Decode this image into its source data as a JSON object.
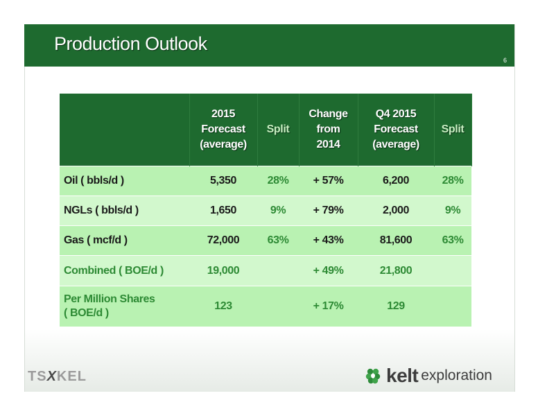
{
  "slide": {
    "title": "Production Outlook",
    "page_number": "6"
  },
  "table": {
    "headers": [
      "",
      "2015\nForecast\n(average)",
      "Split",
      "Change\nfrom\n2014",
      "Q4 2015\nForecast\n(average)",
      "Split"
    ],
    "rows": [
      {
        "label": "Oil ( bbls/d )",
        "forecast_2015": "5,350",
        "split_2015": "28%",
        "change": "+ 57%",
        "forecast_q4": "6,200",
        "split_q4": "28%"
      },
      {
        "label": "NGLs ( bbls/d )",
        "forecast_2015": "1,650",
        "split_2015": "9%",
        "change": "+ 79%",
        "forecast_q4": "2,000",
        "split_q4": "9%"
      },
      {
        "label": "Gas ( mcf/d )",
        "forecast_2015": "72,000",
        "split_2015": "63%",
        "change": "+ 43%",
        "forecast_q4": "81,600",
        "split_q4": "63%"
      },
      {
        "label": "Combined ( BOE/d )",
        "forecast_2015": "19,000",
        "split_2015": "",
        "change": "+ 49%",
        "forecast_q4": "21,800",
        "split_q4": ""
      },
      {
        "label": "Per Million Shares\n( BOE/d )",
        "forecast_2015": "123",
        "split_2015": "",
        "change": "+ 17%",
        "forecast_q4": "129",
        "split_q4": ""
      }
    ]
  },
  "logos": {
    "tsx": {
      "left": "TS",
      "mark": "X",
      "right": "KEL"
    },
    "kelt": {
      "name": "kelt",
      "sub": "exploration",
      "icon": "kelt-leaf-icon"
    }
  },
  "colors": {
    "brand_green": "#1e6a2f",
    "row_dark": "#b9f2b2",
    "row_light": "#d2f8cd",
    "accent_text": "#2d8a34"
  }
}
